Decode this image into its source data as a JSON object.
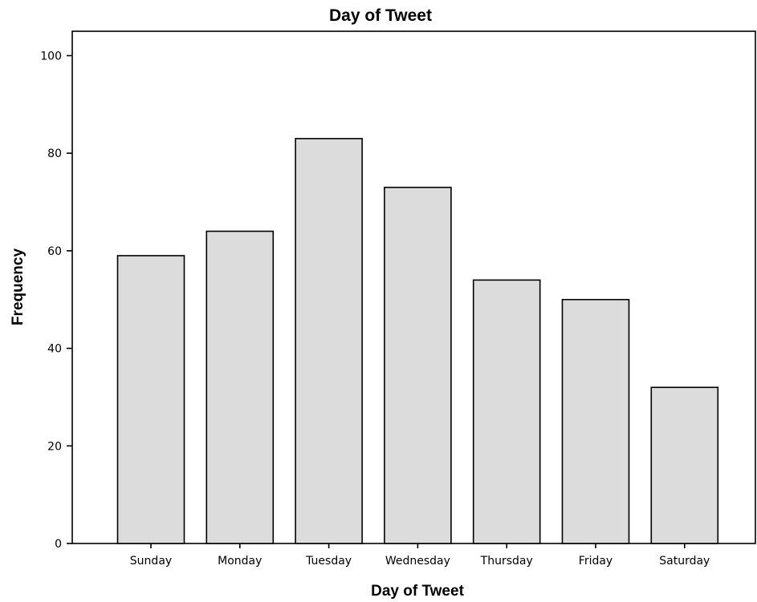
{
  "chart_data": {
    "type": "bar",
    "title": "Day of Tweet",
    "xlabel": "Day of Tweet",
    "ylabel": "Frequency",
    "categories": [
      "Sunday",
      "Monday",
      "Tuesday",
      "Wednesday",
      "Thursday",
      "Friday",
      "Saturday"
    ],
    "values": [
      59,
      64,
      83,
      73,
      54,
      50,
      32
    ],
    "ylim": [
      0,
      105
    ],
    "yticks": [
      0,
      20,
      40,
      60,
      80,
      100
    ],
    "grid": false,
    "legend": "none",
    "bar_color": "#dcdcdc",
    "edge_color": "#000000"
  }
}
